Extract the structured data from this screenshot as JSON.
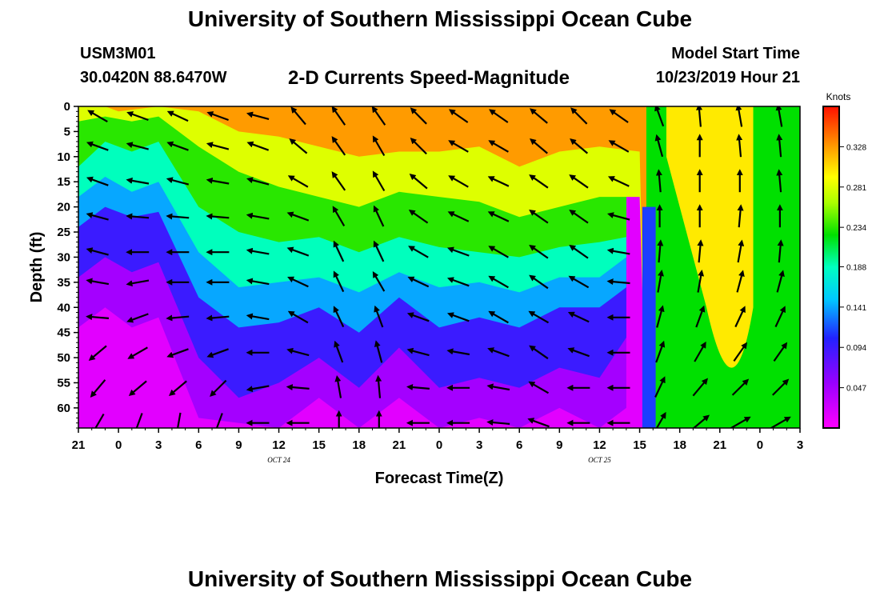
{
  "header": {
    "title": "University of Southern Mississippi Ocean Cube",
    "station_id": "USM3M01",
    "coordinates": "30.0420N 88.6470W",
    "model_start_label": "Model Start Time",
    "model_start_value": "10/23/2019 Hour 21"
  },
  "footer": {
    "title": "University of Southern Mississippi Ocean Cube"
  },
  "chart_data": {
    "type": "heatmap",
    "title": "2-D Currents Speed-Magnitude",
    "xlabel": "Forecast Time(Z)",
    "ylabel": "Depth (ft)",
    "x_tick_labels": [
      "21",
      "0",
      "3",
      "6",
      "9",
      "12",
      "15",
      "18",
      "21",
      "0",
      "3",
      "6",
      "9",
      "12",
      "15",
      "18",
      "21",
      "0",
      "3"
    ],
    "x_hours": [
      0,
      3,
      6,
      9,
      12,
      15,
      18,
      21,
      24,
      27,
      30,
      33,
      36,
      39,
      42,
      45,
      48,
      51,
      54
    ],
    "x_range_hours": [
      0,
      54
    ],
    "date_labels": [
      {
        "text": "OCT 24",
        "hour": 15
      },
      {
        "text": "OCT 25",
        "hour": 39
      }
    ],
    "y_ticks": [
      0,
      5,
      10,
      15,
      20,
      25,
      30,
      35,
      40,
      45,
      50,
      55,
      60
    ],
    "y_range": [
      0,
      64
    ],
    "colorbar": {
      "unit": "Knots",
      "ticks": [
        0.328,
        0.281,
        0.234,
        0.188,
        0.141,
        0.094,
        0.047
      ],
      "range": [
        0.0,
        0.375
      ]
    },
    "speed_contours": [
      {
        "level": 0.328,
        "depth_by_hour": [
          [
            0,
            0
          ],
          [
            2,
            0
          ],
          [
            3,
            1
          ],
          [
            6,
            0
          ],
          [
            9,
            1
          ],
          [
            12,
            5
          ],
          [
            15,
            6
          ],
          [
            18,
            8
          ],
          [
            21,
            10
          ],
          [
            24,
            9
          ],
          [
            27,
            9
          ],
          [
            30,
            8
          ],
          [
            33,
            12
          ],
          [
            36,
            9
          ],
          [
            39,
            8
          ],
          [
            42,
            9
          ],
          [
            42.5,
            64
          ]
        ]
      },
      {
        "level": 0.281,
        "depth_by_hour": [
          [
            0,
            3
          ],
          [
            2,
            2
          ],
          [
            4,
            3
          ],
          [
            6,
            2
          ],
          [
            9,
            8
          ],
          [
            12,
            13
          ],
          [
            15,
            16
          ],
          [
            18,
            18
          ],
          [
            21,
            20
          ],
          [
            24,
            17
          ],
          [
            27,
            18
          ],
          [
            30,
            19
          ],
          [
            33,
            22
          ],
          [
            36,
            20
          ],
          [
            39,
            18
          ],
          [
            42,
            18
          ],
          [
            42.5,
            64
          ]
        ]
      },
      {
        "level": 0.234,
        "depth_by_hour": [
          [
            0,
            12
          ],
          [
            2,
            7
          ],
          [
            4,
            9
          ],
          [
            6,
            7
          ],
          [
            9,
            20
          ],
          [
            12,
            25
          ],
          [
            15,
            27
          ],
          [
            18,
            26
          ],
          [
            21,
            29
          ],
          [
            24,
            26
          ],
          [
            27,
            28
          ],
          [
            30,
            29
          ],
          [
            33,
            30
          ],
          [
            36,
            28
          ],
          [
            39,
            27
          ],
          [
            41,
            26
          ]
        ]
      },
      {
        "level": 0.188,
        "depth_by_hour": [
          [
            0,
            18
          ],
          [
            2,
            14
          ],
          [
            4,
            17
          ],
          [
            6,
            15
          ],
          [
            9,
            29
          ],
          [
            12,
            36
          ],
          [
            15,
            35
          ],
          [
            18,
            34
          ],
          [
            21,
            37
          ],
          [
            24,
            33
          ],
          [
            27,
            36
          ],
          [
            30,
            35
          ],
          [
            33,
            37
          ],
          [
            36,
            34
          ],
          [
            39,
            34
          ],
          [
            41,
            30
          ]
        ]
      },
      {
        "level": 0.141,
        "depth_by_hour": [
          [
            0,
            24
          ],
          [
            2,
            20
          ],
          [
            4,
            22
          ],
          [
            6,
            21
          ],
          [
            9,
            38
          ],
          [
            12,
            44
          ],
          [
            15,
            43
          ],
          [
            18,
            40
          ],
          [
            21,
            45
          ],
          [
            24,
            38
          ],
          [
            27,
            44
          ],
          [
            30,
            42
          ],
          [
            33,
            44
          ],
          [
            36,
            40
          ],
          [
            39,
            40
          ],
          [
            41,
            36
          ]
        ]
      },
      {
        "level": 0.094,
        "depth_by_hour": [
          [
            0,
            34
          ],
          [
            2,
            30
          ],
          [
            4,
            33
          ],
          [
            6,
            31
          ],
          [
            9,
            50
          ],
          [
            12,
            58
          ],
          [
            15,
            55
          ],
          [
            18,
            50
          ],
          [
            21,
            56
          ],
          [
            24,
            48
          ],
          [
            27,
            56
          ],
          [
            30,
            54
          ],
          [
            33,
            56
          ],
          [
            36,
            52
          ],
          [
            39,
            54
          ],
          [
            41,
            46
          ]
        ]
      },
      {
        "level": 0.047,
        "depth_by_hour": [
          [
            0,
            44
          ],
          [
            2,
            40
          ],
          [
            4,
            44
          ],
          [
            6,
            42
          ],
          [
            9,
            62
          ],
          [
            15,
            64
          ],
          [
            18,
            58
          ],
          [
            21,
            64
          ],
          [
            24,
            58
          ],
          [
            27,
            64
          ],
          [
            30,
            62
          ],
          [
            33,
            64
          ],
          [
            36,
            60
          ],
          [
            39,
            64
          ],
          [
            41,
            60
          ]
        ]
      }
    ],
    "arrow_depths_ft": [
      2,
      8,
      15,
      22,
      29,
      35,
      42,
      49,
      56,
      63
    ],
    "arrows": [
      {
        "hour": 1.5,
        "dirs_deg": [
          210,
          200,
          200,
          195,
          195,
          190,
          185,
          140,
          130,
          120
        ]
      },
      {
        "hour": 4.5,
        "dirs_deg": [
          200,
          195,
          190,
          185,
          180,
          170,
          160,
          150,
          140,
          110
        ]
      },
      {
        "hour": 7.5,
        "dirs_deg": [
          205,
          200,
          195,
          185,
          180,
          180,
          175,
          160,
          140,
          100
        ]
      },
      {
        "hour": 10.5,
        "dirs_deg": [
          200,
          195,
          190,
          185,
          180,
          180,
          175,
          160,
          135,
          110
        ]
      },
      {
        "hour": 13.5,
        "dirs_deg": [
          195,
          200,
          195,
          190,
          190,
          190,
          190,
          180,
          170,
          180
        ]
      },
      {
        "hour": 16.5,
        "dirs_deg": [
          230,
          220,
          210,
          200,
          200,
          205,
          210,
          195,
          185,
          180
        ]
      },
      {
        "hour": 19.5,
        "dirs_deg": [
          235,
          235,
          235,
          240,
          245,
          245,
          245,
          250,
          260,
          270
        ]
      },
      {
        "hour": 22.5,
        "dirs_deg": [
          235,
          240,
          240,
          245,
          245,
          240,
          250,
          255,
          265,
          270
        ]
      },
      {
        "hour": 25.5,
        "dirs_deg": [
          225,
          225,
          220,
          215,
          210,
          205,
          200,
          195,
          185,
          180
        ]
      },
      {
        "hour": 28.5,
        "dirs_deg": [
          215,
          210,
          210,
          205,
          200,
          200,
          200,
          190,
          180,
          180
        ]
      },
      {
        "hour": 31.5,
        "dirs_deg": [
          215,
          210,
          205,
          205,
          210,
          210,
          210,
          200,
          190,
          185
        ]
      },
      {
        "hour": 34.5,
        "dirs_deg": [
          220,
          220,
          215,
          215,
          215,
          215,
          210,
          215,
          210,
          200
        ]
      },
      {
        "hour": 37.5,
        "dirs_deg": [
          225,
          220,
          215,
          215,
          215,
          210,
          205,
          200,
          180,
          180
        ]
      },
      {
        "hour": 40.5,
        "dirs_deg": [
          215,
          210,
          205,
          195,
          190,
          185,
          180,
          180,
          180,
          180
        ]
      },
      {
        "hour": 43.5,
        "dirs_deg": [
          250,
          255,
          265,
          270,
          275,
          280,
          285,
          290,
          295,
          300
        ]
      },
      {
        "hour": 46.5,
        "dirs_deg": [
          265,
          270,
          270,
          270,
          275,
          280,
          290,
          300,
          310,
          320
        ]
      },
      {
        "hour": 49.5,
        "dirs_deg": [
          260,
          265,
          270,
          275,
          280,
          285,
          295,
          305,
          315,
          330
        ]
      },
      {
        "hour": 52.5,
        "dirs_deg": [
          260,
          265,
          265,
          270,
          275,
          285,
          295,
          305,
          315,
          330
        ]
      }
    ]
  }
}
